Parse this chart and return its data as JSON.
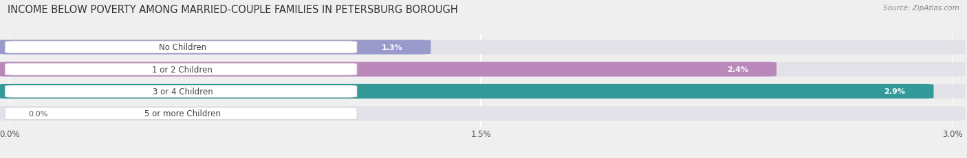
{
  "title": "INCOME BELOW POVERTY AMONG MARRIED-COUPLE FAMILIES IN PETERSBURG BOROUGH",
  "source": "Source: ZipAtlas.com",
  "categories": [
    "No Children",
    "1 or 2 Children",
    "3 or 4 Children",
    "5 or more Children"
  ],
  "values": [
    1.3,
    2.4,
    2.9,
    0.0
  ],
  "bar_colors": [
    "#9999cc",
    "#bb88bb",
    "#339999",
    "#aaaadd"
  ],
  "xlim": [
    0.0,
    3.0
  ],
  "xticks": [
    0.0,
    1.5,
    3.0
  ],
  "xtick_labels": [
    "0.0%",
    "1.5%",
    "3.0%"
  ],
  "background_color": "#efefef",
  "bar_bg_color": "#e2e2e8",
  "title_fontsize": 10.5,
  "label_fontsize": 8.5,
  "value_fontsize": 8.0,
  "label_pill_color": "#ffffff",
  "label_text_color": "#444444",
  "value_text_color_inside": "#ffffff",
  "value_text_color_outside": "#555555"
}
